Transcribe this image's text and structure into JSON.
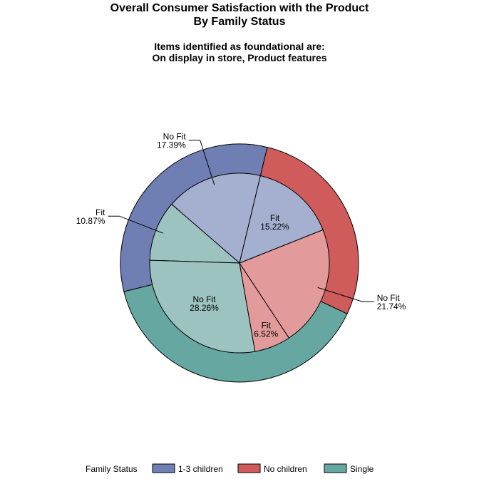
{
  "chart_data": {
    "type": "pie",
    "title": [
      "Overall Consumer Satisfaction with the Product",
      "By Family Status"
    ],
    "subtitle": [
      "Items identified as foundational are:",
      "On display in store, Product features"
    ],
    "legend": {
      "title": "Family Status",
      "placement": "bottom",
      "items": [
        {
          "name": "1-3 children",
          "color": "#6f7eb3"
        },
        {
          "name": "No children",
          "color": "#d05b5b"
        },
        {
          "name": "Single",
          "color": "#66a8a1"
        }
      ]
    },
    "outer_ring": [
      {
        "group": "1-3 children",
        "percent": 32.61,
        "color": "#6f7eb3"
      },
      {
        "group": "Single",
        "percent": 39.13,
        "color": "#66a8a1"
      },
      {
        "group": "No children",
        "percent": 28.26,
        "color": "#d05b5b"
      }
    ],
    "inner_pie": [
      {
        "group": "1-3 children",
        "label": "No Fit",
        "percent": 17.39,
        "pct_label": "17.39%",
        "color": "#a5afd0",
        "label_position": "outside"
      },
      {
        "group": "Single",
        "label": "Fit",
        "percent": 10.87,
        "pct_label": "10.87%",
        "color": "#9cc3c0",
        "label_position": "outside"
      },
      {
        "group": "Single",
        "label": "No Fit",
        "percent": 28.26,
        "pct_label": "28.26%",
        "color": "#9cc3c0",
        "label_position": "inside"
      },
      {
        "group": "No children",
        "label": "Fit",
        "percent": 6.52,
        "pct_label": "6.52%",
        "color": "#e29a9a",
        "label_position": "inside"
      },
      {
        "group": "No children",
        "label": "No Fit",
        "percent": 21.74,
        "pct_label": "21.74%",
        "color": "#e29a9a",
        "label_position": "outside"
      },
      {
        "group": "1-3 children",
        "label": "Fit",
        "percent": 15.22,
        "pct_label": "15.22%",
        "color": "#a5afd0",
        "label_position": "inside"
      }
    ]
  }
}
